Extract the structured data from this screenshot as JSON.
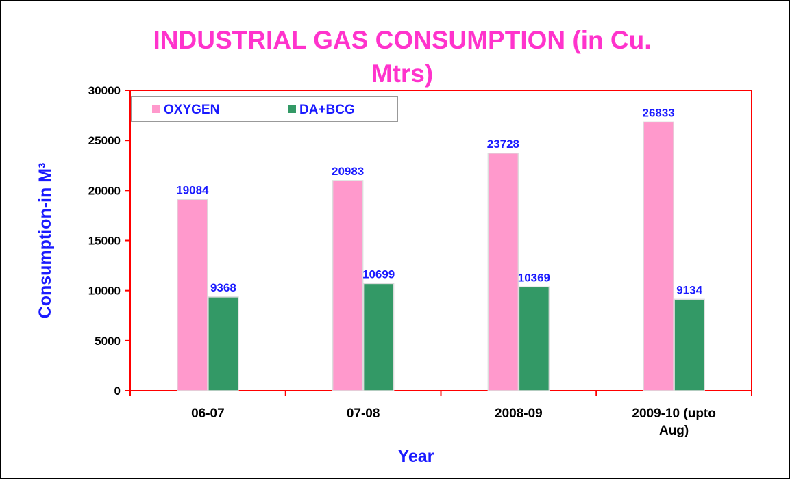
{
  "chart_data": {
    "type": "bar",
    "title": "INDUSTRIAL GAS CONSUMPTION (in Cu. Mtrs)",
    "y_label": "Consumption-in M³",
    "x_label": "Year",
    "categories": [
      "06-07",
      "07-08",
      "2008-09",
      "2009-10 (upto Aug)"
    ],
    "series": [
      {
        "name": "OXYGEN",
        "color": "#ff99cc",
        "values": [
          19084,
          20983,
          23728,
          26833
        ]
      },
      {
        "name": "DA+BCG",
        "color": "#339966",
        "values": [
          9368,
          10699,
          10369,
          9134
        ]
      }
    ],
    "ylim": [
      0,
      30000
    ],
    "yticks": [
      0,
      5000,
      10000,
      15000,
      20000,
      25000,
      30000
    ],
    "legend": "top-left"
  }
}
